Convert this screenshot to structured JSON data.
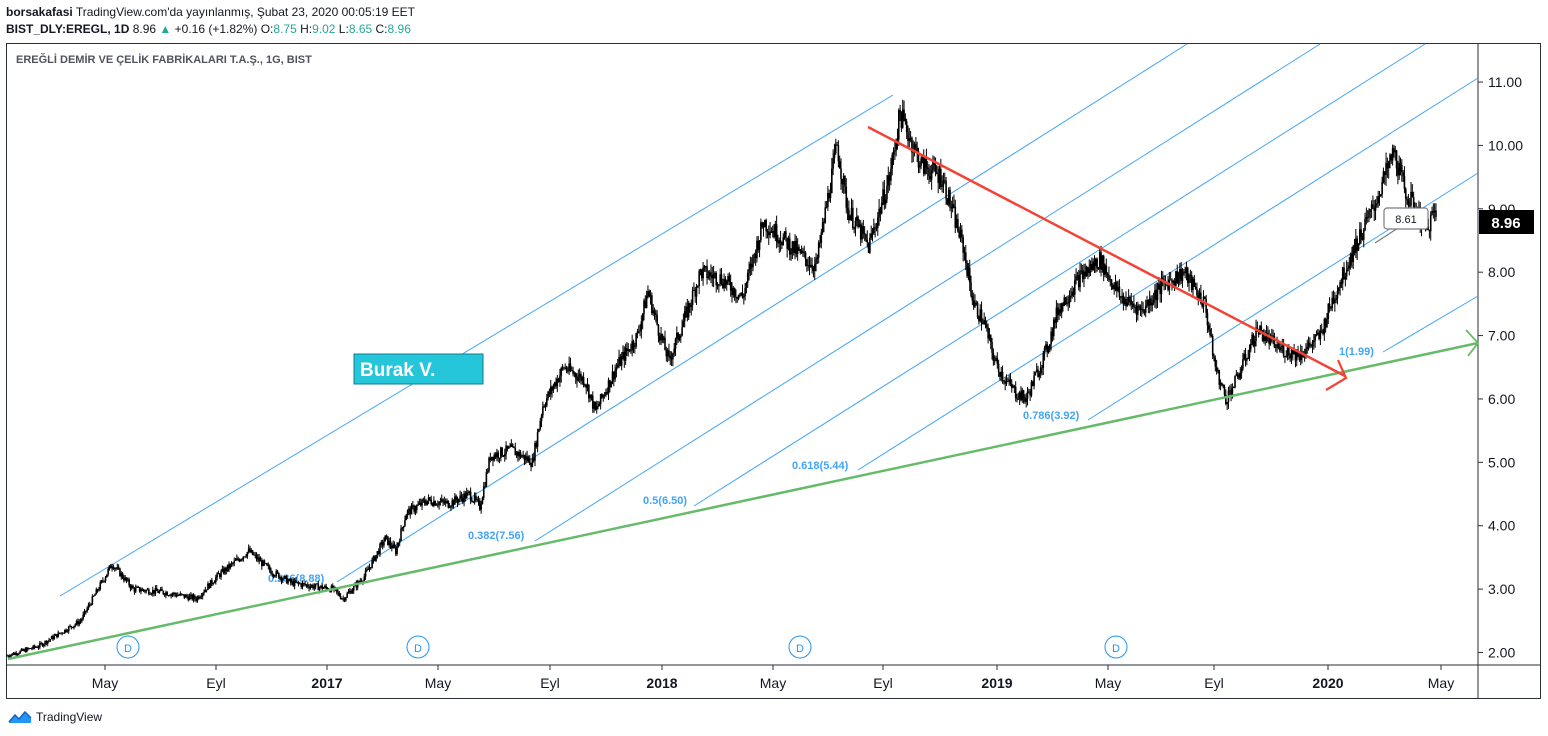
{
  "header": {
    "author": "borsakafasi",
    "published": "TradingView.com'da yayınlanmış, Şubat 23, 2020 00:05:19 EET",
    "symbol": "BIST_DLY:EREGL, 1D",
    "last": "8.96",
    "change": "+0.16 (+1.82%)",
    "open_label": "O:",
    "open": "8.75",
    "high_label": "H:",
    "high": "9.02",
    "low_label": "L:",
    "low": "8.65",
    "close_label": "C:",
    "close": "8.96",
    "up_arrow": "▲"
  },
  "instrument_title": "EREĞLİ DEMİR VE ÇELİK FABRİKALARI T.A.Ş., 1G, BIST",
  "watermark": "Burak V.",
  "footer": {
    "brand": "TradingView",
    "logo_icon": "tradingview-logo-icon"
  },
  "colors": {
    "fib_line": "#42a5f5",
    "fib_label": "#42a5f5",
    "support_line": "#66bb6a",
    "down_trend": "#f44336",
    "candle": "#000000",
    "watermark_bg": "#26c6da",
    "price_badge_bg": "#000000"
  },
  "chart_data": {
    "type": "candlestick",
    "title": "EREĞLİ DEMİR VE ÇELİK FABRİKALARI T.A.Ş., 1G, BIST",
    "ylim": [
      1.85,
      11.6
    ],
    "y_ticks": [
      "11.00",
      "10.00",
      "9.00",
      "8.00",
      "7.00",
      "6.00",
      "5.00",
      "4.00",
      "3.00",
      "2.00"
    ],
    "x_ticks": [
      "May",
      "Eyl",
      "2017",
      "May",
      "Eyl",
      "2018",
      "May",
      "Eyl",
      "2019",
      "May",
      "Eyl",
      "2020",
      "May"
    ],
    "x_ticks_bold": [
      "2017",
      "2018",
      "2019",
      "2020"
    ],
    "current_price": "8.96",
    "callout_price": "8.61",
    "dividend_marker": "D",
    "dividend_count": 4,
    "price_path": [
      [
        0,
        1.95
      ],
      [
        3,
        2.1
      ],
      [
        7,
        2.5
      ],
      [
        10,
        3.4
      ],
      [
        12,
        3.0
      ],
      [
        15,
        2.95
      ],
      [
        18,
        2.85
      ],
      [
        20,
        3.2
      ],
      [
        23,
        3.6
      ],
      [
        25,
        3.3
      ],
      [
        27,
        3.1
      ],
      [
        29,
        3.05
      ],
      [
        31,
        3.0
      ],
      [
        32,
        2.85
      ],
      [
        34,
        3.2
      ],
      [
        36,
        3.8
      ],
      [
        37,
        3.6
      ],
      [
        38,
        4.2
      ],
      [
        40,
        4.4
      ],
      [
        42,
        4.35
      ],
      [
        44,
        4.5
      ],
      [
        45,
        4.3
      ],
      [
        46,
        5.1
      ],
      [
        48,
        5.2
      ],
      [
        50,
        5.0
      ],
      [
        51,
        5.9
      ],
      [
        53,
        6.5
      ],
      [
        55,
        6.3
      ],
      [
        56,
        5.8
      ],
      [
        58,
        6.5
      ],
      [
        60,
        7.0
      ],
      [
        61,
        7.7
      ],
      [
        62,
        7.1
      ],
      [
        63,
        6.6
      ],
      [
        65,
        7.5
      ],
      [
        66,
        8.0
      ],
      [
        68,
        7.9
      ],
      [
        70,
        7.6
      ],
      [
        72,
        8.8
      ],
      [
        74,
        8.5
      ],
      [
        76,
        8.2
      ],
      [
        77,
        8.1
      ],
      [
        79,
        10.0
      ],
      [
        80,
        9.0
      ],
      [
        82,
        8.4
      ],
      [
        84,
        9.5
      ],
      [
        85,
        10.5
      ],
      [
        87,
        9.7
      ],
      [
        89,
        9.5
      ],
      [
        91,
        8.4
      ],
      [
        92,
        7.5
      ],
      [
        93,
        7.2
      ],
      [
        94,
        6.6
      ],
      [
        95,
        6.3
      ],
      [
        96,
        6.1
      ],
      [
        97,
        6.0
      ],
      [
        99,
        6.8
      ],
      [
        100,
        7.4
      ],
      [
        102,
        7.9
      ],
      [
        104,
        8.2
      ],
      [
        106,
        7.6
      ],
      [
        108,
        7.4
      ],
      [
        110,
        7.8
      ],
      [
        112,
        8.0
      ],
      [
        114,
        7.5
      ],
      [
        115,
        6.5
      ],
      [
        116,
        6.0
      ],
      [
        117,
        6.3
      ],
      [
        119,
        7.1
      ],
      [
        121,
        6.8
      ],
      [
        123,
        6.7
      ],
      [
        125,
        7.0
      ],
      [
        126,
        7.5
      ],
      [
        128,
        8.3
      ],
      [
        130,
        9.0
      ],
      [
        132,
        9.9
      ],
      [
        133,
        9.3
      ],
      [
        134,
        9.0
      ],
      [
        135,
        8.7
      ],
      [
        136,
        8.96
      ]
    ],
    "fib_levels": [
      {
        "level": "0",
        "value": "",
        "label": ""
      },
      {
        "level": "0.236",
        "value": "8.88",
        "label": "0.236(8.88)"
      },
      {
        "level": "0.382",
        "value": "7.56",
        "label": "0.382(7.56)"
      },
      {
        "level": "0.5",
        "value": "6.50",
        "label": "0.5(6.50)"
      },
      {
        "level": "0.618",
        "value": "5.44",
        "label": "0.618(5.44)"
      },
      {
        "level": "0.786",
        "value": "3.92",
        "label": "0.786(3.92)"
      },
      {
        "level": "1",
        "value": "1.99",
        "label": "1(1.99)"
      }
    ],
    "trend_lines": [
      {
        "name": "support",
        "color": "green",
        "from": [
          0,
          1.9
        ],
        "to": [
          138,
          7.05
        ]
      },
      {
        "name": "resistance",
        "color": "red",
        "from": [
          85,
          10.45
        ],
        "to": [
          126,
          6.5
        ]
      }
    ]
  }
}
